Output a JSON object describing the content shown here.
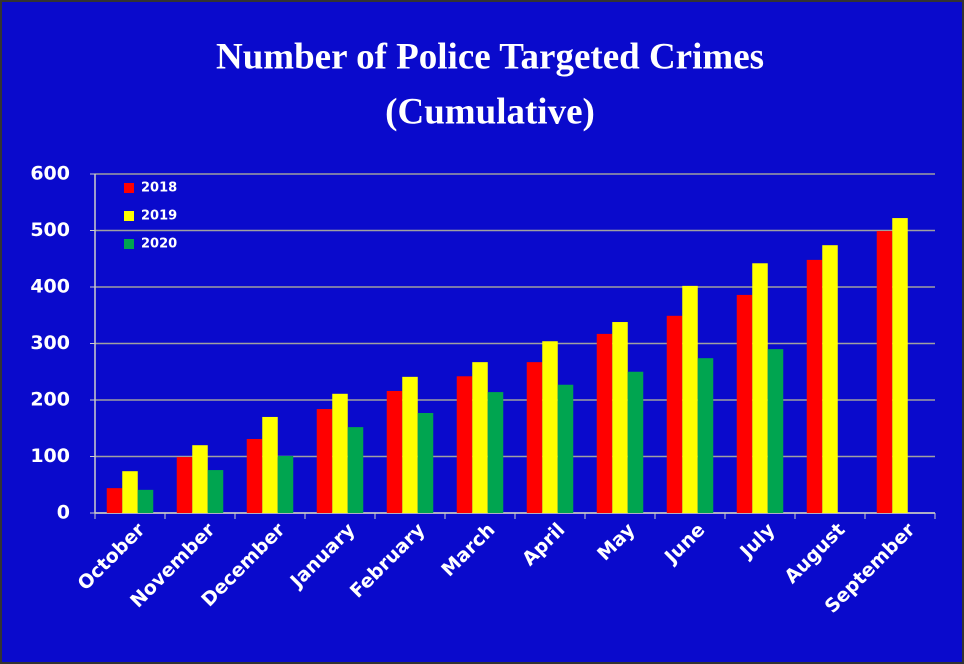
{
  "chart_data": {
    "type": "bar",
    "title": "Number of Police Targeted Crimes",
    "subtitle": "(Cumulative)",
    "categories": [
      "October",
      "November",
      "December",
      "January",
      "February",
      "March",
      "April",
      "May",
      "June",
      "July",
      "August",
      "September"
    ],
    "series": [
      {
        "name": "2018",
        "color": "#ff0000",
        "values": [
          44,
          99,
          131,
          184,
          216,
          242,
          267,
          317,
          349,
          386,
          448,
          499
        ]
      },
      {
        "name": "2019",
        "color": "#ffff00",
        "values": [
          74,
          120,
          170,
          211,
          241,
          267,
          304,
          338,
          402,
          442,
          474,
          522
        ]
      },
      {
        "name": "2020",
        "color": "#00a550",
        "values": [
          41,
          76,
          101,
          152,
          177,
          214,
          227,
          250,
          274,
          290,
          null,
          null
        ]
      }
    ],
    "ylim": [
      0,
      600
    ],
    "yticks": [
      0,
      100,
      200,
      300,
      400,
      500,
      600
    ],
    "grid": true,
    "legend": "top-left"
  }
}
